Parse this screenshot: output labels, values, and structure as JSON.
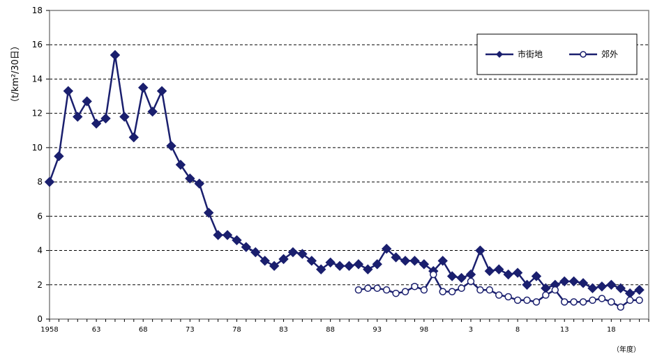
{
  "chart_data": {
    "type": "line",
    "ylabel": "（t/km²/30日）",
    "xunit": "（年度）",
    "ylim": [
      0,
      18
    ],
    "yticks": [
      0,
      2,
      4,
      6,
      8,
      10,
      12,
      14,
      16,
      18
    ],
    "grid": true,
    "legend_position": "top-right",
    "colors": {
      "series": "#1a1f6e",
      "grid": "#000000",
      "axis": "#808080"
    },
    "xticks": [
      {
        "x": 1958,
        "label": "1958"
      },
      {
        "x": 1963,
        "label": "63"
      },
      {
        "x": 1968,
        "label": "68"
      },
      {
        "x": 1973,
        "label": "73"
      },
      {
        "x": 1978,
        "label": "78"
      },
      {
        "x": 1983,
        "label": "83"
      },
      {
        "x": 1988,
        "label": "88"
      },
      {
        "x": 1993,
        "label": "93"
      },
      {
        "x": 1998,
        "label": "98"
      },
      {
        "x": 2003,
        "label": "3"
      },
      {
        "x": 2008,
        "label": "8"
      },
      {
        "x": 2013,
        "label": "13"
      },
      {
        "x": 2018,
        "label": "18"
      }
    ],
    "series": [
      {
        "name": "市街地",
        "marker": "diamond",
        "x": [
          1958,
          1959,
          1960,
          1961,
          1962,
          1963,
          1964,
          1965,
          1966,
          1967,
          1968,
          1969,
          1970,
          1971,
          1972,
          1973,
          1974,
          1975,
          1976,
          1977,
          1978,
          1979,
          1980,
          1981,
          1982,
          1983,
          1984,
          1985,
          1986,
          1987,
          1988,
          1989,
          1990,
          1991,
          1992,
          1993,
          1994,
          1995,
          1996,
          1997,
          1998,
          1999,
          2000,
          2001,
          2002,
          2003,
          2004,
          2005,
          2006,
          2007,
          2008,
          2009,
          2010,
          2011,
          2012,
          2013,
          2014,
          2015,
          2016,
          2017,
          2018,
          2019,
          2020,
          2021
        ],
        "values": [
          8.0,
          9.5,
          13.3,
          11.8,
          12.7,
          11.4,
          11.7,
          15.4,
          11.8,
          10.6,
          13.5,
          12.1,
          13.3,
          10.1,
          9.0,
          8.2,
          7.9,
          6.2,
          4.9,
          4.9,
          4.6,
          4.2,
          3.9,
          3.4,
          3.1,
          3.5,
          3.9,
          3.8,
          3.4,
          2.9,
          3.3,
          3.1,
          3.1,
          3.2,
          2.9,
          3.2,
          4.1,
          3.6,
          3.4,
          3.4,
          3.2,
          2.8,
          3.4,
          2.5,
          2.4,
          2.6,
          4.0,
          2.8,
          2.9,
          2.6,
          2.7,
          2.0,
          2.5,
          1.8,
          2.0,
          2.2,
          2.2,
          2.1,
          1.8,
          1.9,
          2.0,
          1.8,
          1.5,
          1.7
        ]
      },
      {
        "name": "郊外",
        "marker": "circle",
        "x": [
          1991,
          1992,
          1993,
          1994,
          1995,
          1996,
          1997,
          1998,
          1999,
          2000,
          2001,
          2002,
          2003,
          2004,
          2005,
          2006,
          2007,
          2008,
          2009,
          2010,
          2011,
          2012,
          2013,
          2014,
          2015,
          2016,
          2017,
          2018,
          2019,
          2020,
          2021
        ],
        "values": [
          1.7,
          1.8,
          1.8,
          1.7,
          1.5,
          1.6,
          1.9,
          1.7,
          2.6,
          1.6,
          1.6,
          1.8,
          2.2,
          1.7,
          1.7,
          1.4,
          1.3,
          1.1,
          1.1,
          1.0,
          1.4,
          1.7,
          1.0,
          1.0,
          1.0,
          1.1,
          1.2,
          1.0,
          0.7,
          1.1,
          1.1
        ]
      }
    ]
  }
}
